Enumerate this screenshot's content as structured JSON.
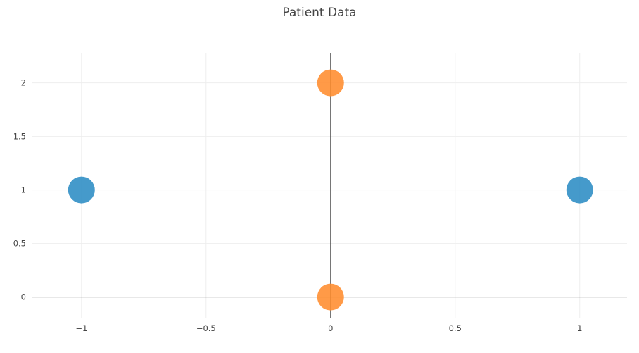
{
  "chart_data": {
    "type": "scatter",
    "title": "Patient Data",
    "xlabel": "",
    "ylabel": "",
    "xlim": [
      -1.2,
      1.19
    ],
    "ylim": [
      -0.2,
      2.28
    ],
    "x_ticks": [
      -1,
      -0.5,
      0,
      0.5,
      1
    ],
    "x_tick_labels": [
      "−1",
      "−0.5",
      "0",
      "0.5",
      "1"
    ],
    "y_ticks": [
      0,
      0.5,
      1,
      1.5,
      2
    ],
    "y_tick_labels": [
      "0",
      "0.5",
      "1",
      "1.5",
      "2"
    ],
    "grid": true,
    "series": [
      {
        "color": "#2b8cc4",
        "points": [
          {
            "x": -1,
            "y": 1
          },
          {
            "x": 1,
            "y": 1
          }
        ]
      },
      {
        "color": "#ff8c2e",
        "points": [
          {
            "x": 0,
            "y": 2
          },
          {
            "x": 0,
            "y": 0
          }
        ]
      }
    ]
  }
}
